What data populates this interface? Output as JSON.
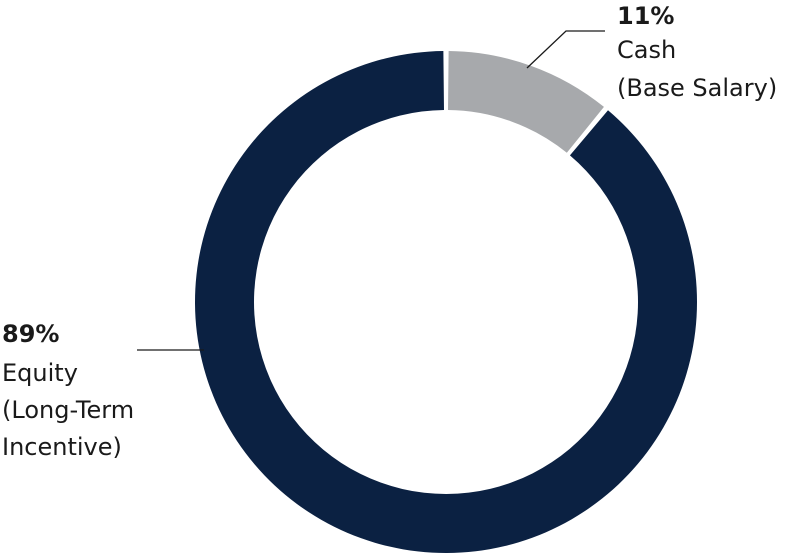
{
  "chart_data": {
    "type": "pie",
    "donut": true,
    "slices": [
      {
        "label_lines": [
          "Cash",
          "(Base Salary)"
        ],
        "value": 11,
        "percent_text": "11%",
        "color": "#a7a9ac"
      },
      {
        "label_lines": [
          "Equity",
          "(Long-Term",
          "Incentive)"
        ],
        "value": 89,
        "percent_text": "89%",
        "color": "#0b2142"
      }
    ],
    "title": "",
    "legend": "none"
  }
}
